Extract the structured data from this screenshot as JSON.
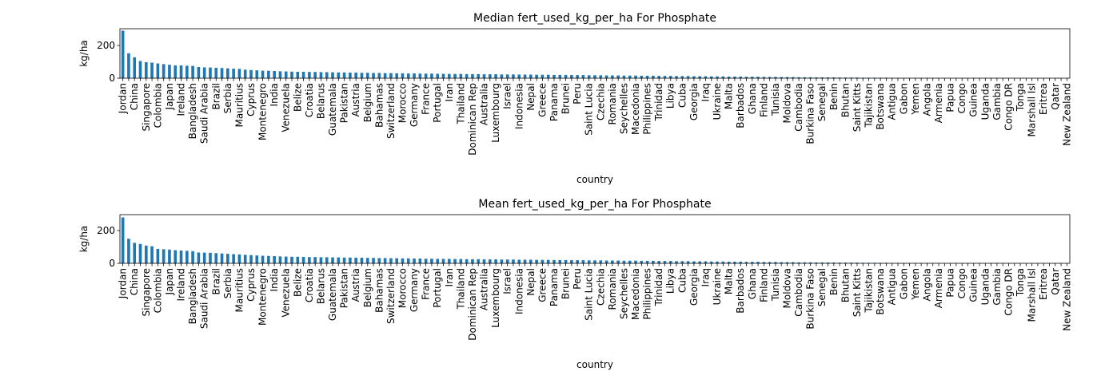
{
  "chart_data": [
    {
      "type": "bar",
      "title": "Median fert_used_kg_per_ha For Phosphate",
      "xlabel": "country",
      "ylabel": "kg/ha",
      "color": "#1f77b4",
      "categories": [
        "Jordan",
        null,
        "China",
        null,
        "Singapore",
        null,
        "Colombia",
        null,
        "Japan",
        null,
        "Ireland",
        null,
        "Bangladesh",
        null,
        "Saudi Arabia",
        null,
        "Brazil",
        null,
        "Serbia",
        null,
        "Mauritius",
        null,
        "Cyprus",
        null,
        "Montenegro",
        null,
        "India",
        null,
        "Venezuela",
        null,
        "Belize",
        null,
        "Croatia",
        null,
        "Belarus",
        null,
        "Guatemala",
        null,
        "Pakistan",
        null,
        "Austria",
        null,
        "Belgium",
        null,
        "Bahamas",
        null,
        "Switzerland",
        null,
        "Morocco",
        null,
        "Germany",
        null,
        "France",
        null,
        "Portugal",
        null,
        "Iran",
        null,
        "Thailand",
        null,
        "Dominican Rep",
        null,
        "Australia",
        null,
        "Luxembourg",
        null,
        "Israel",
        null,
        "Indonesia",
        null,
        "Nepal",
        null,
        "Greece",
        null,
        "Panama",
        null,
        "Brunei",
        null,
        "Peru",
        null,
        "Saint Lucia",
        null,
        "Czechia",
        null,
        "Romania",
        null,
        "Seychelles",
        null,
        "Macedonia",
        null,
        "Philippines",
        null,
        "Trinidad",
        null,
        "Libya",
        null,
        "Cuba",
        null,
        "Georgia",
        null,
        "Iraq",
        null,
        "Ukraine",
        null,
        "Malta",
        null,
        "Barbados",
        null,
        "Ghana",
        null,
        "Finland",
        null,
        "Tunisia",
        null,
        "Moldova",
        null,
        "Cambodia",
        null,
        "Burkina Faso",
        null,
        "Senegal",
        null,
        "Benin",
        null,
        "Bhutan",
        null,
        "Saint Kitts",
        null,
        "Tajikistan",
        null,
        "Botswana",
        null,
        "Antigua",
        null,
        "Gabon",
        null,
        "Yemen",
        null,
        "Angola",
        null,
        "Armenia",
        null,
        "Papua",
        null,
        "Congo",
        null,
        "Guinea",
        null,
        "Uganda",
        null,
        "Gambia",
        null,
        "Congo DR",
        null,
        "Tonga",
        null,
        "Marshall Isl",
        null,
        "Eritrea",
        null,
        "Qatar",
        null,
        "New Zealand"
      ],
      "values": [
        290,
        152,
        128,
        105,
        98,
        95,
        90,
        86,
        82,
        78,
        78,
        76,
        75,
        68,
        66,
        65,
        63,
        62,
        60,
        58,
        57,
        52,
        50,
        48,
        46,
        45,
        44,
        42,
        41,
        40,
        39,
        39,
        38,
        38,
        37,
        37,
        36,
        35,
        35,
        34,
        34,
        33,
        33,
        32,
        32,
        31,
        31,
        30,
        30,
        29,
        29,
        28,
        28,
        28,
        27,
        27,
        26,
        26,
        26,
        25,
        25,
        25,
        24,
        24,
        24,
        23,
        23,
        23,
        22,
        22,
        22,
        21,
        21,
        21,
        20,
        20,
        20,
        19,
        19,
        19,
        18,
        18,
        18,
        17,
        17,
        17,
        16,
        16,
        16,
        15,
        15,
        15,
        14,
        14,
        14,
        13,
        13,
        13,
        12,
        12,
        12,
        11,
        11,
        11,
        10,
        10,
        10,
        9,
        9,
        9,
        8,
        8,
        8,
        7,
        7,
        7,
        6,
        6,
        6,
        5,
        5,
        5,
        5,
        4,
        4,
        4,
        4,
        3,
        3,
        3,
        3,
        3,
        2,
        2,
        2,
        2,
        2,
        2,
        2,
        1,
        1,
        1,
        1,
        1,
        1,
        1,
        1,
        1,
        1,
        1,
        1,
        0.5,
        0.5,
        0,
        0,
        0,
        0,
        0,
        0,
        0,
        0,
        0,
        0
      ],
      "ylim": [
        0,
        302
      ],
      "yticks": [
        0,
        200
      ]
    },
    {
      "type": "bar",
      "title": "Mean fert_used_kg_per_ha For Phosphate",
      "xlabel": "country",
      "ylabel": "kg/ha",
      "color": "#1f77b4",
      "categories": [
        "Jordan",
        null,
        "China",
        null,
        "Singapore",
        null,
        "Colombia",
        null,
        "Japan",
        null,
        "Ireland",
        null,
        "Bangladesh",
        null,
        "Saudi Arabia",
        null,
        "Brazil",
        null,
        "Serbia",
        null,
        "Mauritius",
        null,
        "Cyprus",
        null,
        "Montenegro",
        null,
        "India",
        null,
        "Venezuela",
        null,
        "Belize",
        null,
        "Croatia",
        null,
        "Belarus",
        null,
        "Guatemala",
        null,
        "Pakistan",
        null,
        "Austria",
        null,
        "Belgium",
        null,
        "Bahamas",
        null,
        "Switzerland",
        null,
        "Morocco",
        null,
        "Germany",
        null,
        "France",
        null,
        "Portugal",
        null,
        "Iran",
        null,
        "Thailand",
        null,
        "Dominican Rep",
        null,
        "Australia",
        null,
        "Luxembourg",
        null,
        "Israel",
        null,
        "Indonesia",
        null,
        "Nepal",
        null,
        "Greece",
        null,
        "Panama",
        null,
        "Brunei",
        null,
        "Peru",
        null,
        "Saint Lucia",
        null,
        "Czechia",
        null,
        "Romania",
        null,
        "Seychelles",
        null,
        "Macedonia",
        null,
        "Philippines",
        null,
        "Trinidad",
        null,
        "Libya",
        null,
        "Cuba",
        null,
        "Georgia",
        null,
        "Iraq",
        null,
        "Ukraine",
        null,
        "Malta",
        null,
        "Barbados",
        null,
        "Ghana",
        null,
        "Finland",
        null,
        "Tunisia",
        null,
        "Moldova",
        null,
        "Cambodia",
        null,
        "Burkina Faso",
        null,
        "Senegal",
        null,
        "Benin",
        null,
        "Bhutan",
        null,
        "Saint Kitts",
        null,
        "Tajikistan",
        null,
        "Botswana",
        null,
        "Antigua",
        null,
        "Gabon",
        null,
        "Yemen",
        null,
        "Angola",
        null,
        "Armenia",
        null,
        "Papua",
        null,
        "Congo",
        null,
        "Guinea",
        null,
        "Uganda",
        null,
        "Gambia",
        null,
        "Congo DR",
        null,
        "Tonga",
        null,
        "Marshall Isl",
        null,
        "Eritrea",
        null,
        "Qatar",
        null,
        "New Zealand"
      ],
      "values": [
        280,
        150,
        125,
        118,
        108,
        104,
        88,
        86,
        84,
        80,
        78,
        76,
        74,
        66,
        65,
        64,
        62,
        60,
        58,
        56,
        54,
        52,
        50,
        48,
        46,
        45,
        44,
        42,
        41,
        40,
        40,
        39,
        38,
        38,
        37,
        37,
        36,
        36,
        35,
        35,
        34,
        34,
        33,
        33,
        32,
        32,
        31,
        31,
        30,
        30,
        29,
        29,
        28,
        28,
        27,
        27,
        27,
        26,
        26,
        25,
        25,
        25,
        24,
        24,
        24,
        23,
        23,
        23,
        22,
        22,
        22,
        21,
        21,
        21,
        20,
        20,
        20,
        19,
        19,
        19,
        18,
        18,
        18,
        17,
        17,
        17,
        16,
        16,
        16,
        15,
        15,
        15,
        14,
        14,
        14,
        13,
        13,
        13,
        12,
        12,
        12,
        11,
        11,
        11,
        10,
        10,
        10,
        9,
        9,
        9,
        8,
        8,
        8,
        7,
        7,
        7,
        6,
        6,
        6,
        5,
        5,
        5,
        5,
        4,
        4,
        4,
        4,
        3,
        3,
        3,
        3,
        3,
        2,
        2,
        2,
        2,
        2,
        2,
        2,
        1,
        1,
        1,
        1,
        1,
        1,
        1,
        1,
        1,
        1,
        1,
        1,
        0.5,
        0.5,
        0,
        0,
        0,
        0,
        0,
        0,
        0,
        0,
        0,
        0
      ],
      "ylim": [
        0,
        297
      ],
      "yticks": [
        0,
        200
      ]
    }
  ]
}
